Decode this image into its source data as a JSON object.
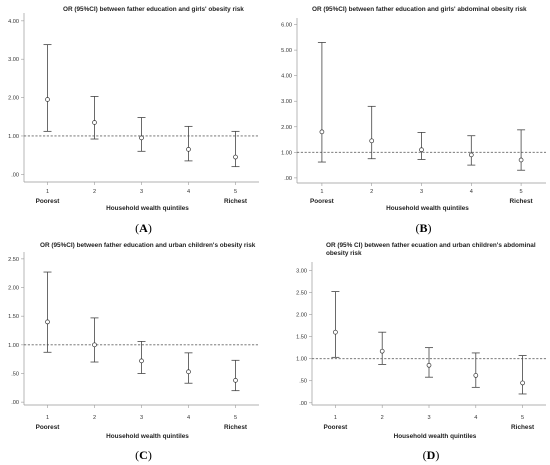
{
  "chart_data": [
    {
      "type": "errorbar",
      "panel_label": "(A)",
      "title": "OR (95%CI) between father education and girls' obesity risk",
      "xlabel": "Household wealth quintiles",
      "ylabel": "",
      "categories": [
        "1",
        "2",
        "3",
        "4",
        "5"
      ],
      "category_labels": {
        "first": "Poorest",
        "last": "Richest"
      },
      "or": [
        1.95,
        1.35,
        0.95,
        0.65,
        0.45
      ],
      "lower": [
        1.12,
        0.92,
        0.6,
        0.35,
        0.2
      ],
      "upper": [
        3.38,
        2.03,
        1.48,
        1.25,
        1.12
      ],
      "reference_line": 1.0,
      "yticks": [
        ".00",
        "1.00",
        "2.00",
        "3.00",
        "4.00"
      ],
      "ylim": [
        -0.2,
        4.1
      ]
    },
    {
      "type": "errorbar",
      "panel_label": "(B)",
      "title": "OR (95%CI) between father education and girls' abdominal obesity risk",
      "xlabel": "Household wealth quintiles",
      "ylabel": "",
      "categories": [
        "1",
        "2",
        "3",
        "4",
        "5"
      ],
      "category_labels": {
        "first": "Poorest",
        "last": "Richest"
      },
      "or": [
        1.8,
        1.45,
        1.1,
        0.9,
        0.7
      ],
      "lower": [
        0.62,
        0.75,
        0.72,
        0.5,
        0.3
      ],
      "upper": [
        5.3,
        2.8,
        1.78,
        1.65,
        1.88
      ],
      "reference_line": 1.0,
      "yticks": [
        ".00",
        "1.00",
        "2.00",
        "3.00",
        "4.00",
        "5.00",
        "6.00"
      ],
      "ylim": [
        -0.2,
        6.1
      ]
    },
    {
      "type": "errorbar",
      "panel_label": "(C)",
      "title": "OR (95%CI) between father education and urban children's obesity risk",
      "xlabel": "Household wealth quintiles",
      "ylabel": "",
      "categories": [
        "1",
        "2",
        "3",
        "4",
        "5"
      ],
      "category_labels": {
        "first": "Poorest",
        "last": "Richest"
      },
      "or": [
        1.4,
        1.0,
        0.72,
        0.53,
        0.38
      ],
      "lower": [
        0.87,
        0.7,
        0.5,
        0.33,
        0.2
      ],
      "upper": [
        2.27,
        1.47,
        1.06,
        0.86,
        0.73
      ],
      "reference_line": 1.0,
      "yticks": [
        ".00",
        ".50",
        "1.00",
        "1.50",
        "2.00",
        "2.50"
      ],
      "ylim": [
        -0.05,
        2.55
      ]
    },
    {
      "type": "errorbar",
      "panel_label": "(D)",
      "title": "OR (95% CI) between father ecuation and urban children's abdominal obesity risk",
      "xlabel": "Household wealth quintiles",
      "ylabel": "",
      "categories": [
        "1",
        "2",
        "3",
        "4",
        "5"
      ],
      "category_labels": {
        "first": "Poorest",
        "last": "Richest"
      },
      "or": [
        1.6,
        1.17,
        0.85,
        0.62,
        0.45
      ],
      "lower": [
        1.03,
        0.87,
        0.58,
        0.35,
        0.2
      ],
      "upper": [
        2.52,
        1.6,
        1.25,
        1.13,
        1.07
      ],
      "reference_line": 1.0,
      "yticks": [
        ".00",
        ".50",
        "1.00",
        "1.50",
        "2.00",
        "2.50",
        "3.00"
      ],
      "ylim": [
        -0.05,
        3.1
      ]
    }
  ]
}
